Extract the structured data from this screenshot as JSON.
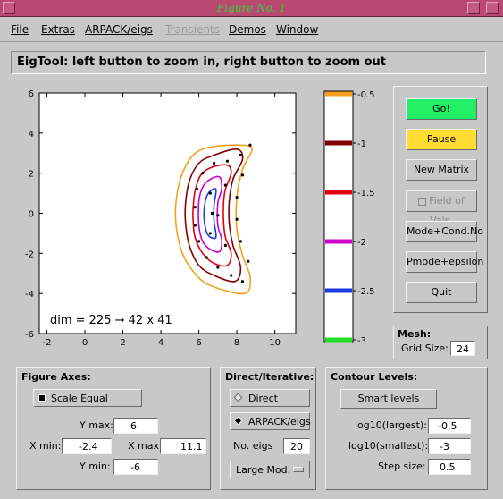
{
  "window": {
    "title": "Figure No. 1"
  },
  "menu": [
    {
      "label": "File",
      "enabled": true
    },
    {
      "label": "Extras",
      "enabled": true
    },
    {
      "label": "ARPACK/eigs",
      "enabled": true
    },
    {
      "label": "Transients",
      "enabled": false
    },
    {
      "label": "Demos",
      "enabled": true
    },
    {
      "label": "Window",
      "enabled": true
    }
  ],
  "message": "EigTool: left button to zoom in, right button to zoom out",
  "plot": {
    "annotation": "dim = 225 → 42 x 41",
    "x_ticks": [
      "-2",
      "0",
      "2",
      "4",
      "6",
      "8",
      "10"
    ],
    "y_ticks": [
      "6",
      "4",
      "2",
      "0",
      "-2",
      "-4",
      "-6"
    ],
    "xlim": [
      -2.4,
      11.1
    ],
    "ylim": [
      -6,
      6
    ]
  },
  "colorbar": {
    "ticks": [
      {
        "label": "-0.5",
        "value": -0.5,
        "color": "#f5a01a"
      },
      {
        "label": "-1",
        "value": -1,
        "color": "#800000"
      },
      {
        "label": "-1.5",
        "value": -1.5,
        "color": "#e00010"
      },
      {
        "label": "-2",
        "value": -2,
        "color": "#cc00cc"
      },
      {
        "label": "-2.5",
        "value": -2.5,
        "color": "#1a3ae6"
      },
      {
        "label": "-3",
        "value": -3,
        "color": "#22dd22"
      }
    ]
  },
  "buttons": {
    "go": "Go!",
    "pause": "Pause",
    "new_matrix": "New Matrix",
    "field_of_vals": "Field of Vals.",
    "mode_cond": "Mode+Cond.No",
    "pmode_eps": "Pmode+epsilon",
    "quit": "Quit"
  },
  "colors": {
    "go": "#22ee66",
    "pause": "#ffdd33"
  },
  "mesh": {
    "title": "Mesh:",
    "grid_label": "Grid Size:",
    "grid_value": "24"
  },
  "figure_axes": {
    "title": "Figure Axes:",
    "scale_equal": "Scale Equal",
    "scale_equal_checked": true,
    "ymax_label": "Y max:",
    "ymax": "6",
    "xmin_label": "X min:",
    "xmin": "-2.4",
    "xmax_label": "X max:",
    "xmax": "11.1",
    "ymin_label": "Y min:",
    "ymin": "-6"
  },
  "direct_iterative": {
    "title": "Direct/Iterative:",
    "direct": "Direct",
    "arpack": "ARPACK/eigs",
    "selected": "ARPACK/eigs",
    "no_eigs_label": "No. eigs",
    "no_eigs": "20",
    "which": "Large Mod."
  },
  "contour_levels": {
    "title": "Contour Levels:",
    "smart_levels": "Smart levels",
    "largest_label": "log10(largest):",
    "largest": "-0.5",
    "smallest_label": "log10(smallest):",
    "smallest": "-3",
    "step_label": "Step size:",
    "step": "0.5"
  }
}
